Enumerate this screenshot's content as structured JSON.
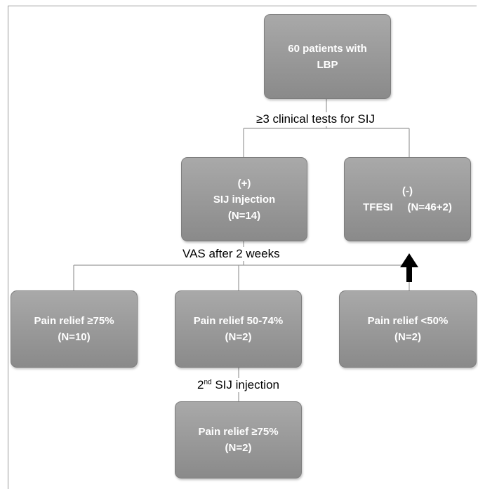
{
  "boxes": {
    "root": {
      "line1": "60 patients with",
      "line2": "LBP"
    },
    "positive": {
      "line1": "(+)",
      "line2": "SIJ injection",
      "line3": "(N=14)"
    },
    "negative": {
      "line1": "(-)",
      "line2": "TFESI     (N=46+2)"
    },
    "relief_high": {
      "line1": "Pain relief ≥75%",
      "line2": "(N=10)"
    },
    "relief_mid": {
      "line1": "Pain relief 50-74%",
      "line2": "(N=2)"
    },
    "relief_low": {
      "line1": "Pain relief <50%",
      "line2": "(N=2)"
    },
    "relief_second": {
      "line1": "Pain relief ≥75%",
      "line2": "(N=2)"
    }
  },
  "labels": {
    "clinical_tests": "≥3 clinical tests for SIJ",
    "vas": "VAS after 2 weeks",
    "second_injection_num": "2",
    "second_injection_sup": "nd",
    "second_injection_rest": " SIJ injection"
  },
  "colors": {
    "box_fill": "#9a9a9a",
    "line": "#9a9a9a"
  }
}
